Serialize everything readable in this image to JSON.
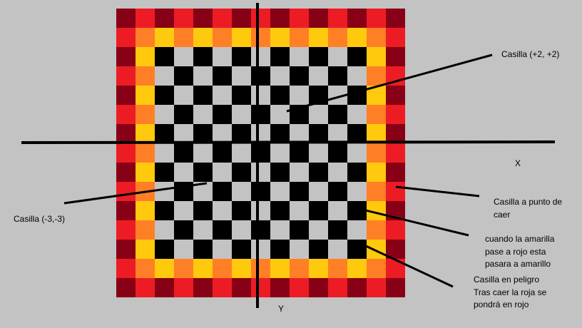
{
  "colors": {
    "background": "#c3c3c3",
    "dark_square": "#000000",
    "light_square": "#c3c3c3",
    "yellow": "#ffc90e",
    "orange": "#ff7f27",
    "red": "#ed1c24",
    "dark_red": "#880015",
    "axis": "#000000"
  },
  "axes": {
    "x_label": "X",
    "y_label": "Y"
  },
  "annotations": {
    "cell_pos": "Casilla (+2, +2)",
    "cell_neg": "Casilla (-3,-3)",
    "about_to_fall": "Casilla a punto de\ncaer",
    "yellow_to_red": "cuando la amarilla\npase a rojo esta\npasara a amarillo",
    "danger": "Casilla en peligro\nTras caer la roja se\npondrá en rojo"
  }
}
